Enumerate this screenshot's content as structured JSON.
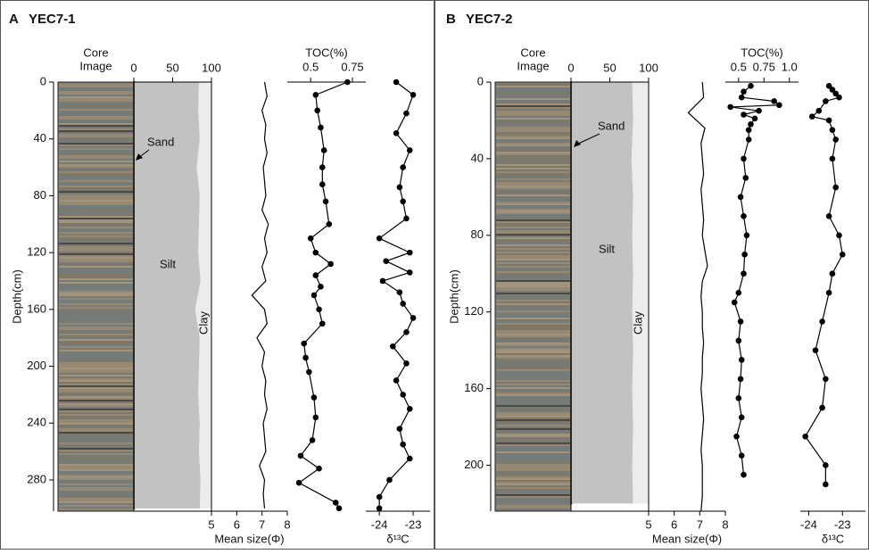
{
  "chart_data": [
    {
      "type": "composition",
      "title": "A",
      "subtitle": "YEC7-1",
      "image_label": [
        "Core",
        "Image"
      ],
      "ylabel": "Depth(cm)",
      "depth": [
        0,
        20,
        40,
        60,
        80,
        100,
        120,
        140,
        160,
        180,
        200,
        220,
        240,
        260,
        280,
        300
      ],
      "ylim": [
        0,
        302
      ],
      "yticks": [
        0,
        40,
        80,
        120,
        160,
        200,
        240,
        280
      ],
      "xlim": [
        0,
        100
      ],
      "xticks": [
        0,
        50,
        100
      ],
      "series": [
        {
          "name": "Sand",
          "color": "#222222",
          "values": [
            1,
            1,
            1,
            1,
            1,
            1,
            1,
            1,
            1,
            1,
            1,
            1,
            1,
            1,
            1,
            1
          ]
        },
        {
          "name": "Silt",
          "color": "#c3c2c3",
          "values": [
            83,
            82,
            84,
            80,
            84,
            83,
            82,
            85,
            78,
            84,
            83,
            82,
            84,
            83,
            85,
            84
          ]
        },
        {
          "name": "Clay",
          "color": "#ececec",
          "values": [
            16,
            17,
            15,
            19,
            15,
            16,
            17,
            14,
            21,
            15,
            16,
            17,
            15,
            16,
            14,
            15
          ]
        }
      ]
    },
    {
      "type": "profile",
      "xlabel": "Mean size(Φ)",
      "x_axis": "bottom",
      "markers": false,
      "color": "#000000",
      "depth": [
        0,
        10,
        20,
        30,
        40,
        50,
        60,
        70,
        80,
        90,
        100,
        110,
        120,
        130,
        140,
        150,
        160,
        170,
        180,
        190,
        200,
        210,
        220,
        230,
        240,
        250,
        260,
        270,
        280,
        290,
        300
      ],
      "values": [
        7.1,
        7.2,
        7.0,
        7.15,
        7.1,
        7.2,
        7.05,
        7.1,
        7.15,
        7.0,
        7.25,
        7.1,
        7.2,
        7.0,
        7.15,
        6.6,
        7.1,
        7.2,
        6.8,
        7.1,
        7.0,
        7.15,
        7.1,
        7.2,
        7.05,
        7.1,
        7.15,
        6.9,
        7.1,
        7.05,
        7.1
      ],
      "xlim": [
        5,
        8
      ],
      "xticks": [
        5,
        6,
        7,
        8
      ],
      "ylim": [
        0,
        302
      ]
    },
    {
      "type": "profile",
      "xlabel": "TOC(%)",
      "x_axis": "top",
      "markers": true,
      "color": "#000000",
      "depth": [
        0,
        9,
        20,
        32,
        48,
        60,
        72,
        84,
        100,
        110,
        120,
        128,
        136,
        144,
        150,
        160,
        170,
        184,
        194,
        204,
        222,
        236,
        252,
        263,
        272,
        282,
        296,
        300
      ],
      "values": [
        0.72,
        0.53,
        0.54,
        0.56,
        0.58,
        0.57,
        0.57,
        0.59,
        0.61,
        0.5,
        0.53,
        0.62,
        0.53,
        0.56,
        0.52,
        0.55,
        0.57,
        0.46,
        0.47,
        0.49,
        0.52,
        0.53,
        0.51,
        0.44,
        0.55,
        0.43,
        0.65,
        0.67
      ],
      "xlim": [
        0.36,
        0.83
      ],
      "xticks": [
        0.5,
        0.75
      ],
      "ylim": [
        0,
        302
      ]
    },
    {
      "type": "profile",
      "xlabel": "δ¹³C",
      "x_axis": "bottom",
      "markers": true,
      "color": "#000000",
      "depth": [
        0,
        9,
        22,
        36,
        48,
        60,
        74,
        84,
        96,
        110,
        120,
        126,
        134,
        140,
        148,
        156,
        166,
        176,
        186,
        198,
        210,
        220,
        230,
        244,
        255,
        265,
        280,
        292,
        300
      ],
      "values": [
        -23.5,
        -23.0,
        -23.2,
        -23.5,
        -23.1,
        -23.3,
        -23.4,
        -23.3,
        -23.2,
        -24.0,
        -23.1,
        -23.8,
        -23.1,
        -23.9,
        -23.4,
        -23.3,
        -23.0,
        -23.2,
        -23.6,
        -23.2,
        -23.5,
        -23.3,
        -23.1,
        -23.4,
        -23.3,
        -23.1,
        -23.7,
        -24.0,
        -24.0
      ],
      "xlim": [
        -24.4,
        -22.5
      ],
      "xticks": [
        -24,
        -23
      ],
      "ylim": [
        0,
        302
      ]
    },
    {
      "type": "composition",
      "title": "B",
      "subtitle": "YEC7-2",
      "image_label": [
        "Core",
        "Image"
      ],
      "ylabel": "Depth(cm)",
      "depth": [
        0,
        20,
        40,
        60,
        80,
        100,
        120,
        140,
        160,
        180,
        200,
        220
      ],
      "ylim": [
        0,
        224
      ],
      "yticks": [
        0,
        40,
        80,
        120,
        160,
        200
      ],
      "xlim": [
        0,
        100
      ],
      "xticks": [
        0,
        50,
        100
      ],
      "series": [
        {
          "name": "Sand",
          "color": "#222222",
          "values": [
            1,
            1,
            1,
            1,
            1,
            1,
            1,
            1,
            1,
            1,
            1,
            1
          ]
        },
        {
          "name": "Silt",
          "color": "#c3c2c3",
          "values": [
            78,
            79,
            77,
            79,
            78,
            79,
            78,
            79,
            78,
            79,
            78,
            79
          ]
        },
        {
          "name": "Clay",
          "color": "#ececec",
          "values": [
            21,
            20,
            22,
            20,
            21,
            20,
            21,
            20,
            21,
            20,
            21,
            20
          ]
        }
      ]
    },
    {
      "type": "profile",
      "xlabel": "Mean size(Φ)",
      "x_axis": "bottom",
      "markers": false,
      "color": "#000000",
      "depth": [
        0,
        8,
        16,
        24,
        32,
        40,
        48,
        56,
        64,
        72,
        80,
        88,
        96,
        104,
        112,
        120,
        128,
        136,
        144,
        152,
        160,
        168,
        176,
        184,
        192,
        200,
        208,
        216,
        224
      ],
      "values": [
        7.1,
        7.15,
        6.55,
        7.2,
        7.05,
        7.1,
        7.15,
        7.05,
        7.1,
        7.15,
        7.1,
        7.2,
        7.3,
        7.1,
        7.05,
        7.1,
        7.1,
        7.15,
        7.1,
        7.1,
        7.05,
        7.1,
        7.15,
        7.1,
        7.05,
        7.1,
        7.1,
        7.1,
        7.05
      ],
      "xlim": [
        5,
        8
      ],
      "xticks": [
        5,
        6,
        7,
        8
      ],
      "ylim": [
        0,
        224
      ]
    },
    {
      "type": "profile",
      "xlabel": "TOC(%)",
      "x_axis": "top",
      "markers": true,
      "color": "#000000",
      "depth": [
        2,
        5,
        8,
        10,
        12,
        13,
        15,
        17,
        19,
        22,
        25,
        30,
        40,
        50,
        60,
        70,
        80,
        90,
        100,
        110,
        115,
        125,
        135,
        145,
        155,
        165,
        175,
        185,
        195,
        205
      ],
      "values": [
        0.62,
        0.55,
        0.53,
        0.85,
        0.9,
        0.42,
        0.7,
        0.55,
        0.66,
        0.62,
        0.6,
        0.6,
        0.55,
        0.57,
        0.52,
        0.55,
        0.58,
        0.56,
        0.55,
        0.5,
        0.46,
        0.52,
        0.5,
        0.53,
        0.52,
        0.5,
        0.53,
        0.48,
        0.53,
        0.55
      ],
      "xlim": [
        0.37,
        1.09
      ],
      "xticks": [
        0.5,
        0.75,
        {
          "value": 1,
          "label": "1.0"
        }
      ],
      "ylim": [
        0,
        224
      ]
    },
    {
      "type": "profile",
      "xlabel": "δ¹³C",
      "x_axis": "bottom",
      "markers": true,
      "color": "#000000",
      "depth": [
        2,
        4,
        6,
        8,
        10,
        15,
        18,
        20,
        25,
        30,
        40,
        55,
        70,
        80,
        90,
        100,
        110,
        125,
        140,
        155,
        170,
        185,
        200,
        210
      ],
      "values": [
        -23.4,
        -23.3,
        -23.2,
        -23.1,
        -23.5,
        -23.7,
        -23.9,
        -23.4,
        -23.3,
        -23.2,
        -23.3,
        -23.2,
        -23.4,
        -23.1,
        -23.0,
        -23.3,
        -23.4,
        -23.6,
        -23.8,
        -23.5,
        -23.6,
        -24.1,
        -23.5,
        -23.5
      ],
      "xlim": [
        -24.25,
        -22.32
      ],
      "xticks": [
        -24,
        -23
      ],
      "ylim": [
        0,
        224
      ]
    }
  ]
}
